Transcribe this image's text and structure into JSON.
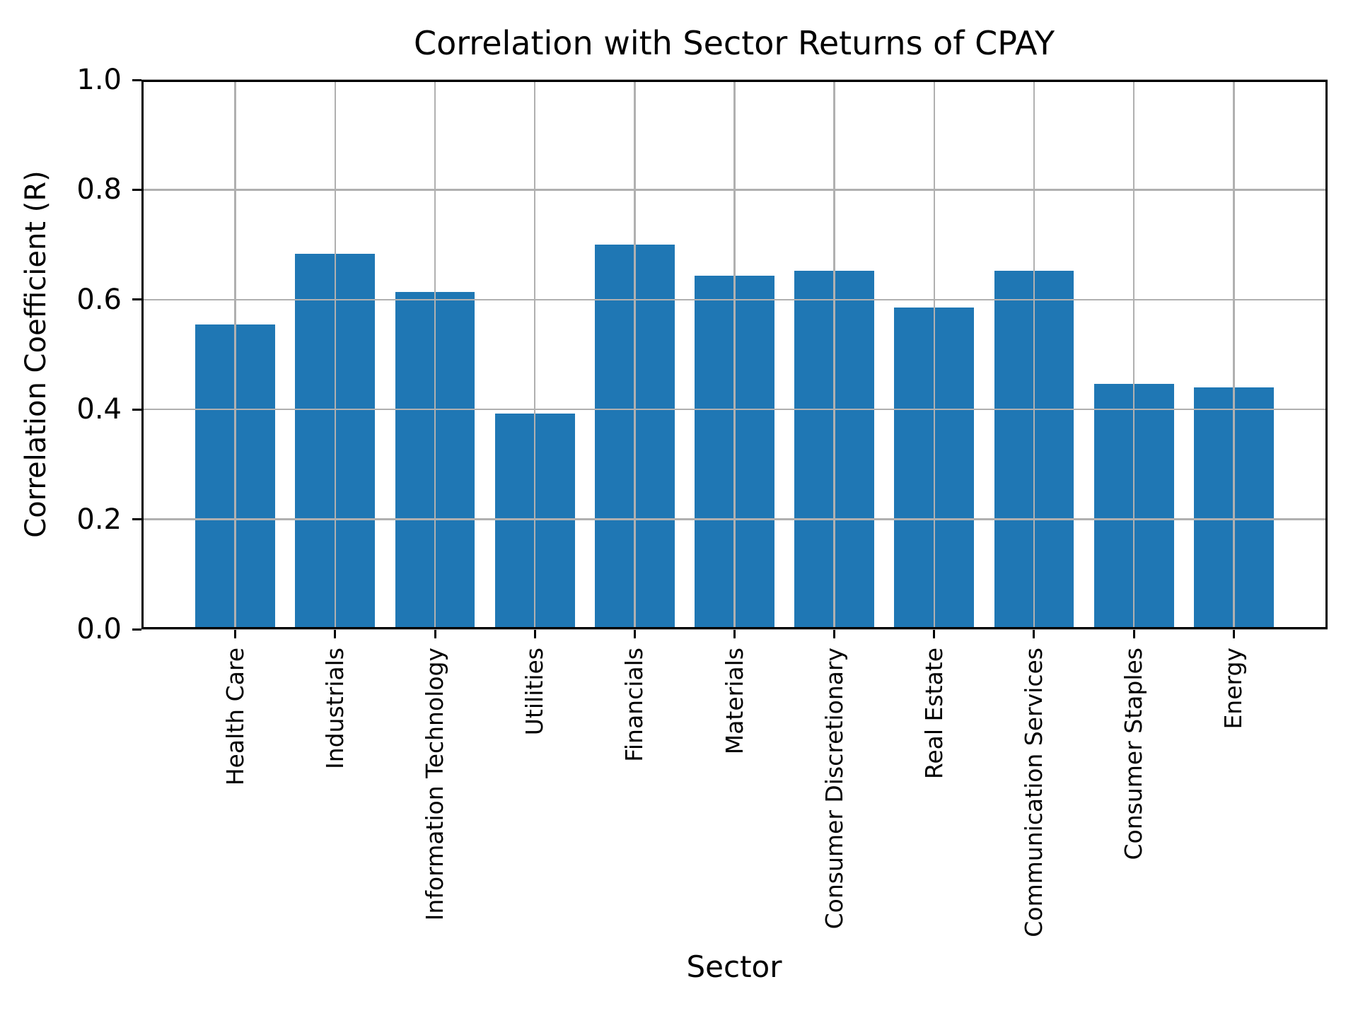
{
  "chart_data": {
    "type": "bar",
    "title": "Correlation with Sector Returns of CPAY",
    "xlabel": "Sector",
    "ylabel": "Correlation Coefficient (R)",
    "categories": [
      "Health Care",
      "Industrials",
      "Information Technology",
      "Utilities",
      "Financials",
      "Materials",
      "Consumer Discretionary",
      "Real Estate",
      "Communication Services",
      "Consumer Staples",
      "Energy"
    ],
    "values": [
      0.555,
      0.683,
      0.614,
      0.392,
      0.7,
      0.644,
      0.652,
      0.585,
      0.652,
      0.447,
      0.44
    ],
    "ylim": [
      0.0,
      1.0
    ],
    "y_ticks": [
      0.0,
      0.2,
      0.4,
      0.6,
      0.8,
      1.0
    ],
    "y_tick_labels": [
      "0.0",
      "0.2",
      "0.4",
      "0.6",
      "0.8",
      "1.0"
    ],
    "grid": true,
    "grid_above_bars": true,
    "legend": "none",
    "bar_color": "#1f77b4",
    "grid_color": "#b0b0b0",
    "spine_color": "#000000",
    "text_color": "#000000",
    "bar_width_fraction": 0.8
  }
}
